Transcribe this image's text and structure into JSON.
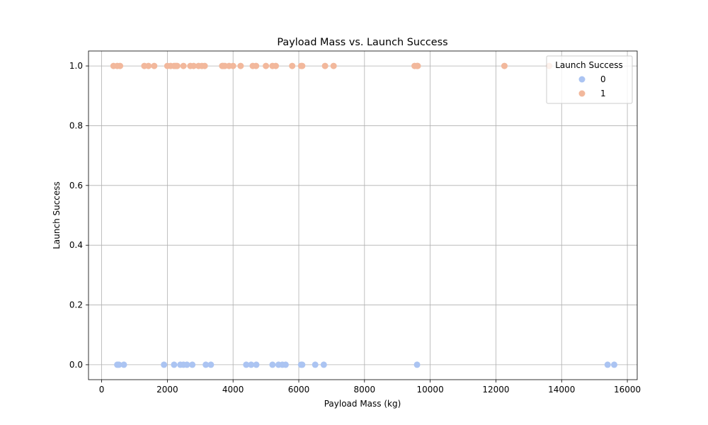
{
  "chart_data": {
    "type": "scatter",
    "title": "Payload Mass vs. Launch Success",
    "xlabel": "Payload Mass (kg)",
    "ylabel": "Launch Success",
    "xlim": [
      -400,
      16300
    ],
    "ylim": [
      -0.05,
      1.05
    ],
    "xticks": [
      0,
      2000,
      4000,
      6000,
      8000,
      10000,
      12000,
      14000,
      16000
    ],
    "xtick_labels": [
      "0",
      "2000",
      "4000",
      "6000",
      "8000",
      "10000",
      "12000",
      "14000",
      "16000"
    ],
    "yticks": [
      0.0,
      0.2,
      0.4,
      0.6,
      0.8,
      1.0
    ],
    "ytick_labels": [
      "0.0",
      "0.2",
      "0.4",
      "0.6",
      "0.8",
      "1.0"
    ],
    "grid": true,
    "legend": {
      "title": "Launch Success",
      "position": "top-right"
    },
    "series": [
      {
        "name": "0",
        "color": "#abc4f2",
        "x": [
          475,
          525,
          677,
          1898,
          2205,
          2395,
          2490,
          2596,
          2760,
          3170,
          3325,
          4400,
          4550,
          4707,
          5200,
          5384,
          5500,
          5600,
          6070,
          6104,
          6500,
          6761,
          9600,
          15400,
          15600
        ],
        "y": [
          0,
          0,
          0,
          0,
          0,
          0,
          0,
          0,
          0,
          0,
          0,
          0,
          0,
          0,
          0,
          0,
          0,
          0,
          0,
          0,
          0,
          0,
          0,
          0,
          0
        ]
      },
      {
        "name": "1",
        "color": "#f2b89c",
        "x": [
          362,
          475,
          560,
          1300,
          1425,
          1600,
          2000,
          2100,
          2205,
          2257,
          2300,
          2490,
          2700,
          2800,
          2950,
          3050,
          3136,
          3669,
          3696,
          3750,
          3880,
          4000,
          4230,
          4600,
          4700,
          5000,
          5200,
          5300,
          5800,
          6070,
          6104,
          6800,
          7060,
          9525,
          9600,
          9620,
          12259,
          13620
        ],
        "y": [
          1,
          1,
          1,
          1,
          1,
          1,
          1,
          1,
          1,
          1,
          1,
          1,
          1,
          1,
          1,
          1,
          1,
          1,
          1,
          1,
          1,
          1,
          1,
          1,
          1,
          1,
          1,
          1,
          1,
          1,
          1,
          1,
          1,
          1,
          1,
          1,
          1,
          1
        ]
      }
    ]
  }
}
